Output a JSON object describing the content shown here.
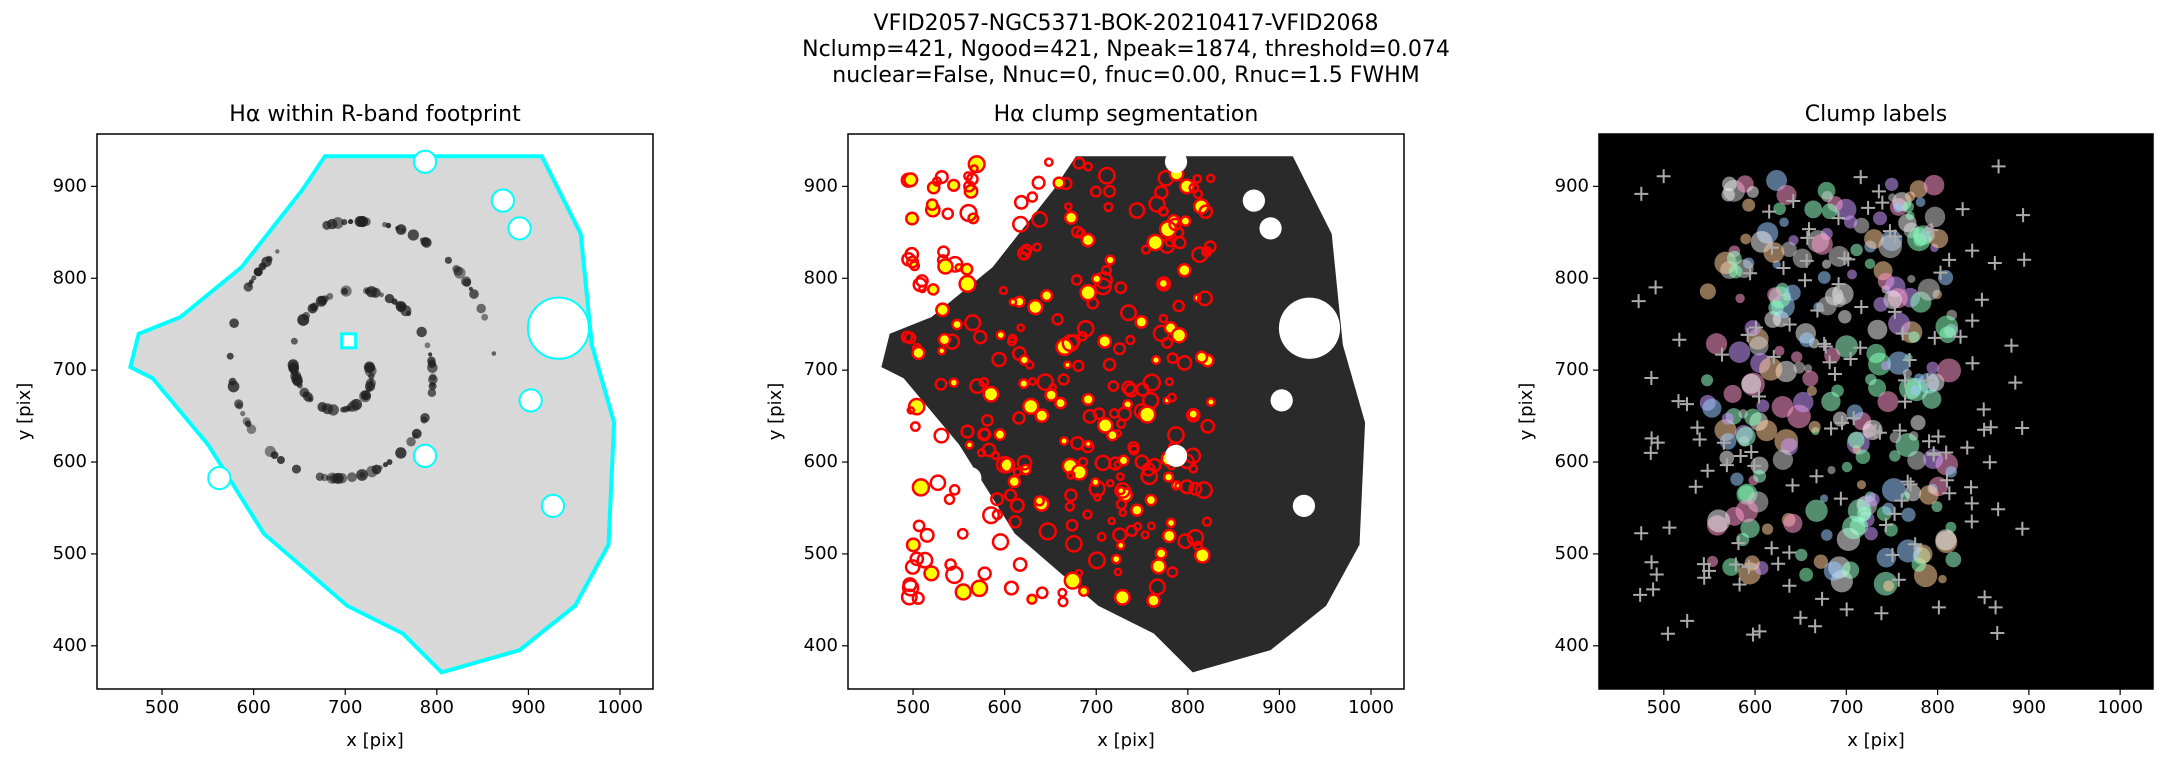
{
  "figure_title": [
    "VFID2057-NGC5371-BOK-20210417-VFID2068",
    "Nclump=421, Ngood=421, Npeak=1874, threshold=0.074",
    "nuclear=False, Nnuc=0, fnuc=0.00, Rnuc=1.5 FWHM"
  ],
  "chart_data": [
    {
      "type": "image",
      "title": "Hα within R-band footprint",
      "x_label": "x [pix]",
      "y_label": "y [pix]",
      "xlim": [
        429,
        1036
      ],
      "ylim": [
        353,
        957
      ],
      "xticks": [
        500,
        600,
        700,
        800,
        900,
        1000
      ],
      "yticks": [
        400,
        500,
        600,
        700,
        800,
        900
      ],
      "background": "#ffffff"
    },
    {
      "type": "image",
      "title": "Hα clump segmentation",
      "x_label": "x [pix]",
      "y_label": "y [pix]",
      "xlim": [
        429,
        1036
      ],
      "ylim": [
        353,
        957
      ],
      "xticks": [
        500,
        600,
        700,
        800,
        900,
        1000
      ],
      "yticks": [
        400,
        500,
        600,
        700,
        800,
        900
      ],
      "background": "#ffffff"
    },
    {
      "type": "image",
      "title": "Clump labels",
      "x_label": "x [pix]",
      "y_label": "y [pix]",
      "xlim": [
        429,
        1036
      ],
      "ylim": [
        353,
        957
      ],
      "xticks": [
        500,
        600,
        700,
        800,
        900,
        1000
      ],
      "yticks": [
        400,
        500,
        600,
        700,
        800,
        900
      ],
      "background": "#000000"
    }
  ]
}
